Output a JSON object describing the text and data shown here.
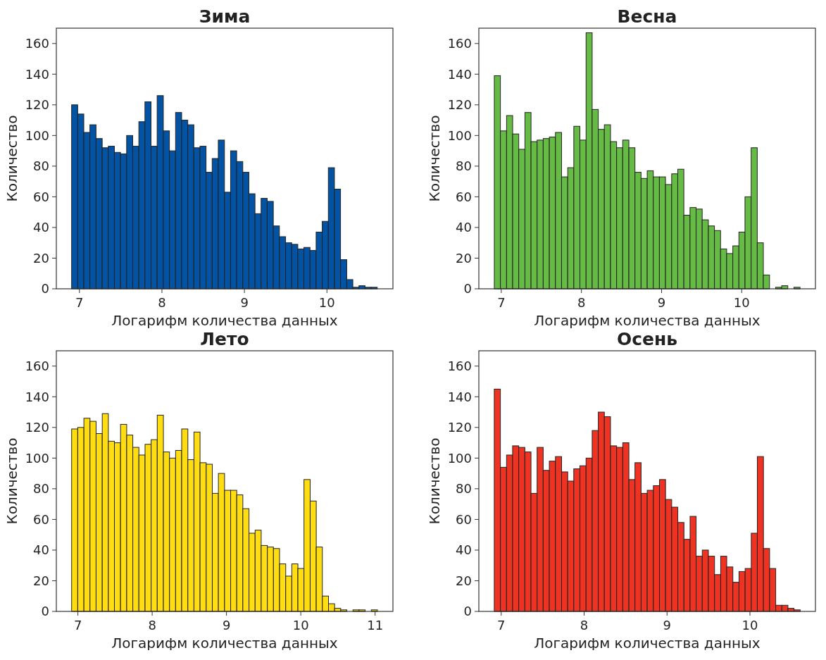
{
  "chart_data": [
    {
      "type": "histogram",
      "title": "Зима",
      "xlabel": "Логарифм количества данных",
      "ylabel": "Количество",
      "color": "#0353a4",
      "xlim": [
        6.72,
        10.8
      ],
      "ylim": [
        0,
        170
      ],
      "xticks": [
        7,
        8,
        9,
        10
      ],
      "yticks": [
        0,
        20,
        40,
        60,
        80,
        100,
        120,
        140,
        160
      ],
      "bins": [
        6.905,
        6.979,
        7.053,
        7.127,
        7.201,
        7.276,
        7.35,
        7.424,
        7.498,
        7.572,
        7.646,
        7.72,
        7.794,
        7.868,
        7.942,
        8.017,
        8.091,
        8.165,
        8.239,
        8.313,
        8.387,
        8.461,
        8.535,
        8.609,
        8.683,
        8.758,
        8.832,
        8.906,
        8.98,
        9.054,
        9.128,
        9.202,
        9.276,
        9.35,
        9.424,
        9.499,
        9.573,
        9.647,
        9.721,
        9.795,
        9.869,
        9.943,
        10.017,
        10.091,
        10.165,
        10.24,
        10.314,
        10.388,
        10.462,
        10.536,
        10.61
      ],
      "values": [
        120,
        114,
        102,
        107,
        98,
        92,
        93,
        89,
        88,
        100,
        93,
        109,
        122,
        93,
        126,
        103,
        90,
        115,
        110,
        107,
        92,
        93,
        76,
        85,
        97,
        63,
        90,
        83,
        76,
        62,
        49,
        59,
        57,
        41,
        34,
        30,
        29,
        26,
        27,
        25,
        37,
        44,
        79,
        65,
        19,
        6,
        1,
        2,
        1,
        1
      ]
    },
    {
      "type": "histogram",
      "title": "Весна",
      "xlabel": "Логарифм количества данных",
      "ylabel": "Количество",
      "color": "#66bb44",
      "xlim": [
        6.72,
        10.92
      ],
      "ylim": [
        0,
        170
      ],
      "xticks": [
        7,
        8,
        9,
        10
      ],
      "yticks": [
        0,
        20,
        40,
        60,
        80,
        100,
        120,
        140,
        160
      ],
      "bins": [
        6.913,
        6.989,
        7.066,
        7.142,
        7.218,
        7.295,
        7.371,
        7.447,
        7.523,
        7.6,
        7.676,
        7.752,
        7.829,
        7.905,
        7.981,
        8.058,
        8.134,
        8.21,
        8.286,
        8.363,
        8.439,
        8.515,
        8.592,
        8.668,
        8.744,
        8.821,
        8.897,
        8.973,
        9.049,
        9.126,
        9.202,
        9.278,
        9.355,
        9.431,
        9.507,
        9.584,
        9.66,
        9.736,
        9.812,
        9.889,
        9.965,
        10.041,
        10.118,
        10.194,
        10.27,
        10.347,
        10.423,
        10.499,
        10.575,
        10.652,
        10.728
      ],
      "values": [
        139,
        103,
        113,
        101,
        91,
        115,
        96,
        97,
        98,
        99,
        102,
        73,
        79,
        106,
        97,
        167,
        117,
        104,
        107,
        96,
        92,
        97,
        92,
        76,
        72,
        77,
        73,
        73,
        68,
        75,
        78,
        48,
        53,
        52,
        45,
        41,
        38,
        26,
        23,
        28,
        37,
        60,
        92,
        30,
        9,
        0,
        1,
        2,
        0,
        1
      ]
    },
    {
      "type": "histogram",
      "title": "Лето",
      "xlabel": "Логарифм количества данных",
      "ylabel": "Количество",
      "color": "#ffdd11",
      "xlim": [
        6.71,
        11.24
      ],
      "ylim": [
        0,
        170
      ],
      "xticks": [
        7,
        8,
        9,
        10,
        11
      ],
      "yticks": [
        0,
        20,
        40,
        60,
        80,
        100,
        120,
        140,
        160
      ],
      "bins": [
        6.916,
        6.998,
        7.081,
        7.163,
        7.245,
        7.328,
        7.41,
        7.492,
        7.574,
        7.657,
        7.739,
        7.821,
        7.904,
        7.986,
        8.068,
        8.151,
        8.233,
        8.315,
        8.397,
        8.48,
        8.562,
        8.644,
        8.727,
        8.809,
        8.891,
        8.974,
        9.056,
        9.138,
        9.22,
        9.303,
        9.385,
        9.467,
        9.55,
        9.632,
        9.714,
        9.797,
        9.879,
        9.961,
        10.043,
        10.126,
        10.208,
        10.29,
        10.373,
        10.455,
        10.537,
        10.62,
        10.702,
        10.784,
        10.866,
        10.949,
        11.031
      ],
      "values": [
        119,
        120,
        126,
        124,
        116,
        129,
        111,
        110,
        122,
        115,
        107,
        102,
        109,
        112,
        128,
        104,
        100,
        105,
        119,
        99,
        117,
        97,
        96,
        77,
        90,
        79,
        79,
        76,
        67,
        51,
        53,
        43,
        42,
        41,
        31,
        23,
        31,
        28,
        86,
        72,
        42,
        10,
        5,
        2,
        1,
        0,
        1,
        1,
        0,
        1
      ]
    },
    {
      "type": "histogram",
      "title": "Осень",
      "xlabel": "Логарифм количества данных",
      "ylabel": "Количество",
      "color": "#ee3322",
      "xlim": [
        6.73,
        10.79
      ],
      "ylim": [
        0,
        170
      ],
      "xticks": [
        7,
        8,
        9,
        10
      ],
      "yticks": [
        0,
        20,
        40,
        60,
        80,
        100,
        120,
        140,
        160
      ],
      "bins": [
        6.916,
        6.99,
        7.064,
        7.137,
        7.211,
        7.285,
        7.359,
        7.433,
        7.506,
        7.58,
        7.654,
        7.728,
        7.802,
        7.875,
        7.949,
        8.023,
        8.097,
        8.171,
        8.244,
        8.318,
        8.392,
        8.466,
        8.54,
        8.613,
        8.687,
        8.761,
        8.835,
        8.909,
        8.982,
        9.056,
        9.13,
        9.204,
        9.278,
        9.351,
        9.425,
        9.499,
        9.573,
        9.647,
        9.72,
        9.794,
        9.868,
        9.942,
        10.016,
        10.089,
        10.163,
        10.237,
        10.311,
        10.385,
        10.458,
        10.532,
        10.606
      ],
      "values": [
        145,
        94,
        102,
        108,
        107,
        104,
        77,
        107,
        92,
        98,
        101,
        91,
        85,
        93,
        95,
        100,
        118,
        130,
        127,
        108,
        107,
        110,
        86,
        97,
        77,
        79,
        82,
        86,
        73,
        68,
        58,
        47,
        62,
        36,
        40,
        36,
        24,
        36,
        29,
        19,
        26,
        28,
        51,
        101,
        41,
        28,
        4,
        4,
        2,
        1
      ]
    }
  ]
}
